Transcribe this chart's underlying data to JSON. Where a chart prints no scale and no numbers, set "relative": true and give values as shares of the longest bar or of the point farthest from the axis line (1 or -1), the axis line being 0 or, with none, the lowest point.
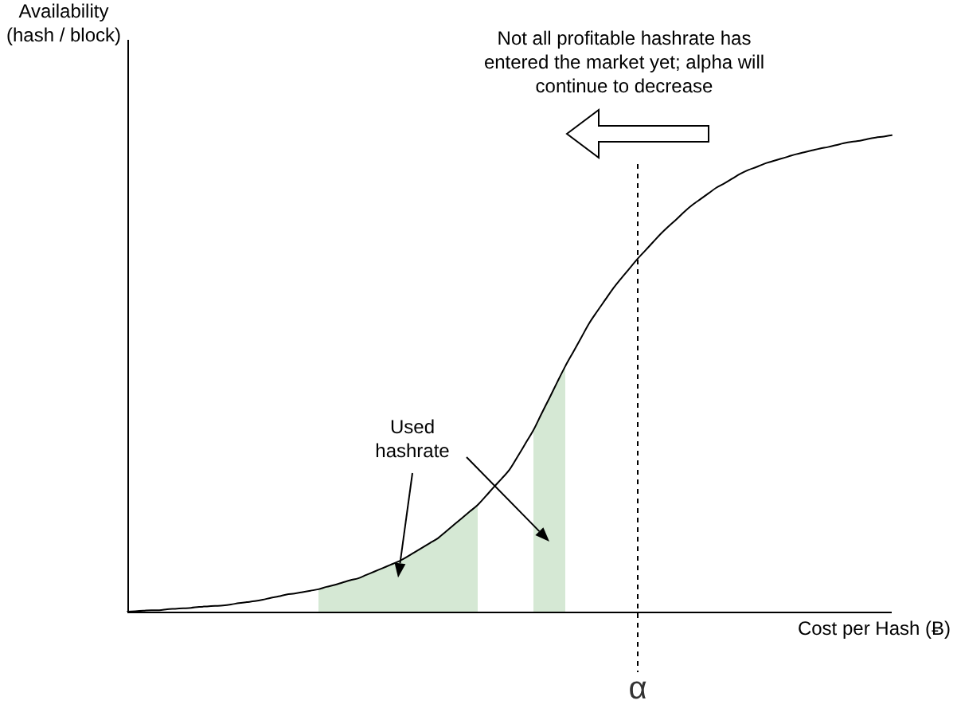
{
  "chart_data": {
    "type": "line",
    "relative": true,
    "xlabel": "Cost per Hash (Ƀ)",
    "ylabel": "Availability (hash / block)",
    "annotations": [
      "Not all profitable hashrate has entered the market yet; alpha will continue to decrease",
      "α"
    ],
    "categories": [
      null,
      null,
      null,
      null,
      null,
      null,
      null,
      null,
      null,
      null,
      null,
      null,
      null,
      null,
      null,
      null,
      null,
      null,
      null,
      null,
      null,
      null,
      null,
      null,
      null,
      null,
      null,
      null,
      null,
      null,
      null,
      null,
      null,
      null,
      null,
      null,
      null,
      null,
      null,
      null,
      null,
      null,
      null,
      null,
      null,
      null,
      null,
      null,
      null,
      null,
      null,
      null,
      null,
      null,
      null,
      null,
      null,
      null,
      null,
      null,
      null,
      null,
      null,
      null,
      null,
      null,
      null,
      null,
      null,
      null,
      null,
      null,
      null,
      null,
      null,
      null,
      null,
      null,
      null,
      null,
      null,
      null,
      null,
      null,
      null,
      null,
      null,
      null,
      null,
      null,
      null,
      null,
      null,
      null,
      null,
      null,
      null
    ],
    "series": [
      {
        "color": "#000000",
        "values": [
          0.0,
          0.001,
          0.002,
          0.003,
          0.003,
          0.005,
          0.006,
          0.007,
          0.008,
          0.01,
          0.011,
          0.012,
          0.013,
          0.015,
          0.018,
          0.02,
          0.022,
          0.025,
          0.029,
          0.032,
          0.036,
          0.038,
          0.041,
          0.044,
          0.047,
          0.052,
          0.056,
          0.061,
          0.066,
          0.07,
          0.077,
          0.084,
          0.091,
          0.098,
          0.105,
          0.114,
          0.124,
          0.134,
          0.144,
          0.154,
          0.168,
          0.182,
          0.196,
          0.21,
          0.224,
          0.242,
          0.261,
          0.279,
          0.298,
          0.325,
          0.353,
          0.381,
          0.415,
          0.448,
          0.482,
          0.515,
          0.545,
          0.575,
          0.605,
          0.63,
          0.654,
          0.678,
          0.699,
          0.719,
          0.739,
          0.757,
          0.775,
          0.793,
          0.809,
          0.824,
          0.84,
          0.854,
          0.866,
          0.878,
          0.89,
          0.899,
          0.909,
          0.919,
          0.927,
          0.933,
          0.94,
          0.945,
          0.95,
          0.955,
          0.96,
          0.964,
          0.968,
          0.972,
          0.975,
          0.979,
          0.983,
          0.986,
          0.988,
          0.992,
          0.995,
          0.997,
          1.0
        ]
      },
      {
        "type": "area",
        "name": "Used hashrate",
        "color": "#d5e8d4",
        "values": [
          null,
          null,
          null,
          null,
          null,
          null,
          null,
          null,
          null,
          null,
          null,
          null,
          null,
          null,
          null,
          null,
          null,
          null,
          null,
          null,
          null,
          null,
          null,
          null,
          0.047,
          0.052,
          0.056,
          0.061,
          0.066,
          0.07,
          0.077,
          0.084,
          0.091,
          0.098,
          0.105,
          0.114,
          0.124,
          0.134,
          0.144,
          0.154,
          0.168,
          0.182,
          0.196,
          0.21,
          0.224,
          null,
          null,
          null,
          null,
          null,
          null,
          0.381,
          0.415,
          0.448,
          0.482,
          0.515,
          null,
          null,
          null,
          null,
          null,
          null,
          null,
          null,
          null,
          null,
          null,
          null,
          null,
          null,
          null,
          null,
          null,
          null,
          null,
          null,
          null,
          null,
          null,
          null,
          null,
          null,
          null,
          null,
          null,
          null,
          null,
          null,
          null,
          null,
          null,
          null,
          null,
          null,
          null,
          null,
          null
        ]
      }
    ]
  }
}
